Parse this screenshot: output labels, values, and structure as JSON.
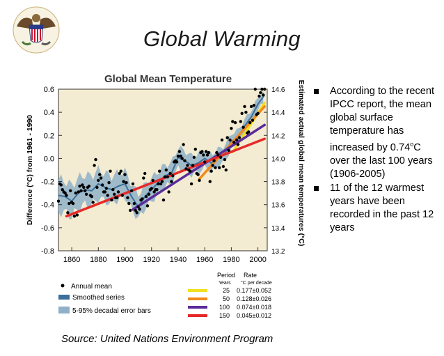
{
  "slide": {
    "title": "Global Warming",
    "source": "Source: United Nations Environment Program",
    "bullets": [
      {
        "text": "According to the recent IPCC report, the mean global surface temperature has increased by 0.74",
        "sup": "o",
        "tail": "C over the last 100 years (1906-2005)"
      },
      {
        "text": "11 of the 12 warmest years have been recorded in the past 12 years"
      }
    ]
  },
  "chart_data": {
    "type": "scatter",
    "title": "Global Mean Temperature",
    "ylabel": "Difference (°C) from 1961 - 1990",
    "y2label": "Estimated actual global mean temperatures (°C)",
    "xlim": [
      1850,
      2007
    ],
    "ylim": [
      -0.8,
      0.6
    ],
    "y2lim": [
      13.2,
      14.6
    ],
    "xticks": [
      1860,
      1880,
      1900,
      1920,
      1940,
      1960,
      1980,
      2000
    ],
    "yticks": [
      "-0.8",
      "-0.6",
      "-0.4",
      "-0.2",
      "0.0",
      "0.2",
      "0.4",
      "0.6"
    ],
    "y2ticks": [
      "13.2",
      "13.4",
      "13.6",
      "13.8",
      "14.0",
      "14.2",
      "14.4",
      "14.6"
    ],
    "annual_mean": {
      "name": "Annual mean",
      "x": [
        1850,
        1851,
        1852,
        1853,
        1854,
        1855,
        1856,
        1857,
        1858,
        1859,
        1860,
        1861,
        1862,
        1863,
        1864,
        1865,
        1866,
        1867,
        1868,
        1869,
        1870,
        1871,
        1872,
        1873,
        1874,
        1875,
        1876,
        1877,
        1878,
        1879,
        1880,
        1881,
        1882,
        1883,
        1884,
        1885,
        1886,
        1887,
        1888,
        1889,
        1890,
        1891,
        1892,
        1893,
        1894,
        1895,
        1896,
        1897,
        1898,
        1899,
        1900,
        1901,
        1902,
        1903,
        1904,
        1905,
        1906,
        1907,
        1908,
        1909,
        1910,
        1911,
        1912,
        1913,
        1914,
        1915,
        1916,
        1917,
        1918,
        1919,
        1920,
        1921,
        1922,
        1923,
        1924,
        1925,
        1926,
        1927,
        1928,
        1929,
        1930,
        1931,
        1932,
        1933,
        1934,
        1935,
        1936,
        1937,
        1938,
        1939,
        1940,
        1941,
        1942,
        1943,
        1944,
        1945,
        1946,
        1947,
        1948,
        1949,
        1950,
        1951,
        1952,
        1953,
        1954,
        1955,
        1956,
        1957,
        1958,
        1959,
        1960,
        1961,
        1962,
        1963,
        1964,
        1965,
        1966,
        1967,
        1968,
        1969,
        1970,
        1971,
        1972,
        1973,
        1974,
        1975,
        1976,
        1977,
        1978,
        1979,
        1980,
        1981,
        1982,
        1983,
        1984,
        1985,
        1986,
        1987,
        1988,
        1989,
        1990,
        1991,
        1992,
        1993,
        1994,
        1995,
        1996,
        1997,
        1998,
        1999,
        2000,
        2001,
        2002,
        2003,
        2004,
        2005
      ],
      "y": [
        -0.37,
        -0.22,
        -0.23,
        -0.27,
        -0.29,
        -0.3,
        -0.32,
        -0.47,
        -0.39,
        -0.28,
        -0.38,
        -0.39,
        -0.5,
        -0.3,
        -0.49,
        -0.29,
        -0.24,
        -0.28,
        -0.23,
        -0.25,
        -0.28,
        -0.31,
        -0.25,
        -0.24,
        -0.32,
        -0.33,
        -0.38,
        -0.06,
        -0.01,
        -0.25,
        -0.19,
        -0.14,
        -0.17,
        -0.23,
        -0.29,
        -0.29,
        -0.26,
        -0.32,
        -0.21,
        -0.11,
        -0.36,
        -0.27,
        -0.31,
        -0.34,
        -0.34,
        -0.29,
        -0.13,
        -0.11,
        -0.32,
        -0.2,
        -0.14,
        -0.21,
        -0.34,
        -0.39,
        -0.45,
        -0.28,
        -0.22,
        -0.39,
        -0.45,
        -0.47,
        -0.42,
        -0.44,
        -0.36,
        -0.35,
        -0.17,
        -0.13,
        -0.33,
        -0.41,
        -0.31,
        -0.27,
        -0.26,
        -0.19,
        -0.29,
        -0.27,
        -0.27,
        -0.22,
        -0.11,
        -0.22,
        -0.2,
        -0.36,
        -0.16,
        -0.1,
        -0.16,
        -0.29,
        -0.13,
        -0.2,
        -0.15,
        -0.03,
        -0.02,
        -0.03,
        0.02,
        0.06,
        0.02,
        0.0,
        0.12,
        -0.02,
        -0.09,
        -0.06,
        -0.1,
        -0.11,
        -0.22,
        -0.06,
        0.01,
        0.08,
        -0.13,
        -0.14,
        -0.19,
        0.05,
        0.06,
        0.03,
        -0.03,
        0.06,
        0.03,
        0.05,
        -0.2,
        -0.11,
        -0.06,
        -0.02,
        -0.08,
        0.05,
        0.03,
        -0.08,
        0.01,
        0.16,
        -0.07,
        -0.01,
        -0.1,
        0.18,
        0.07,
        0.16,
        0.26,
        0.32,
        0.14,
        0.31,
        0.16,
        0.12,
        0.18,
        0.32,
        0.39,
        0.27,
        0.45,
        0.4,
        0.22,
        0.23,
        0.31,
        0.45,
        0.33,
        0.46,
        0.61,
        0.38,
        0.39,
        0.54,
        0.57,
        0.6,
        0.55,
        0.65
      ]
    },
    "smoothed_series": {
      "name": "Smoothed series",
      "x": [
        1850,
        1855,
        1860,
        1865,
        1870,
        1875,
        1880,
        1885,
        1890,
        1895,
        1900,
        1905,
        1910,
        1915,
        1920,
        1925,
        1930,
        1935,
        1940,
        1945,
        1950,
        1955,
        1960,
        1965,
        1970,
        1975,
        1980,
        1985,
        1990,
        1995,
        2000,
        2005
      ],
      "y": [
        -0.32,
        -0.33,
        -0.37,
        -0.3,
        -0.27,
        -0.28,
        -0.22,
        -0.25,
        -0.27,
        -0.24,
        -0.22,
        -0.33,
        -0.42,
        -0.33,
        -0.27,
        -0.21,
        -0.15,
        -0.13,
        0.01,
        -0.02,
        -0.06,
        -0.04,
        0.0,
        -0.04,
        0.01,
        0.04,
        0.15,
        0.18,
        0.28,
        0.36,
        0.47,
        0.55
      ]
    },
    "error_band": {
      "name": "5-95% decadal error bars",
      "half_width_early": 0.14,
      "half_width_late": 0.05
    },
    "trends": {
      "header": {
        "col1": "Period",
        "col2": "Rate",
        "sub1": "Years",
        "sub2": "°C  per decade"
      },
      "items": [
        {
          "period": "25",
          "rate": "0.177±0.052",
          "color": "#f0e020",
          "x0": 1981,
          "x1": 2005,
          "slope_per_decade": 0.177,
          "anchor_year": 2005,
          "anchor_value": 0.48
        },
        {
          "period": "50",
          "rate": "0.128±0.026",
          "color": "#f08a1c",
          "x0": 1956,
          "x1": 2005,
          "slope_per_decade": 0.128,
          "anchor_year": 2005,
          "anchor_value": 0.45
        },
        {
          "period": "100",
          "rate": "0.074±0.018",
          "color": "#5b2c9a",
          "x0": 1906,
          "x1": 2005,
          "slope_per_decade": 0.074,
          "anchor_year": 2005,
          "anchor_value": 0.29
        },
        {
          "period": "150",
          "rate": "0.045±0.012",
          "color": "#e62a2a",
          "x0": 1856,
          "x1": 2005,
          "slope_per_decade": 0.045,
          "anchor_year": 2005,
          "anchor_value": 0.17
        }
      ]
    },
    "legend": {
      "annual": "Annual mean",
      "smoothed": "Smoothed series",
      "error": "5-95% decadal error bars"
    },
    "colors": {
      "plot_bg": "#f3ecd2",
      "band": "#8fb1c8",
      "smoothed": "#3c6f99",
      "dots": "#000000"
    }
  }
}
